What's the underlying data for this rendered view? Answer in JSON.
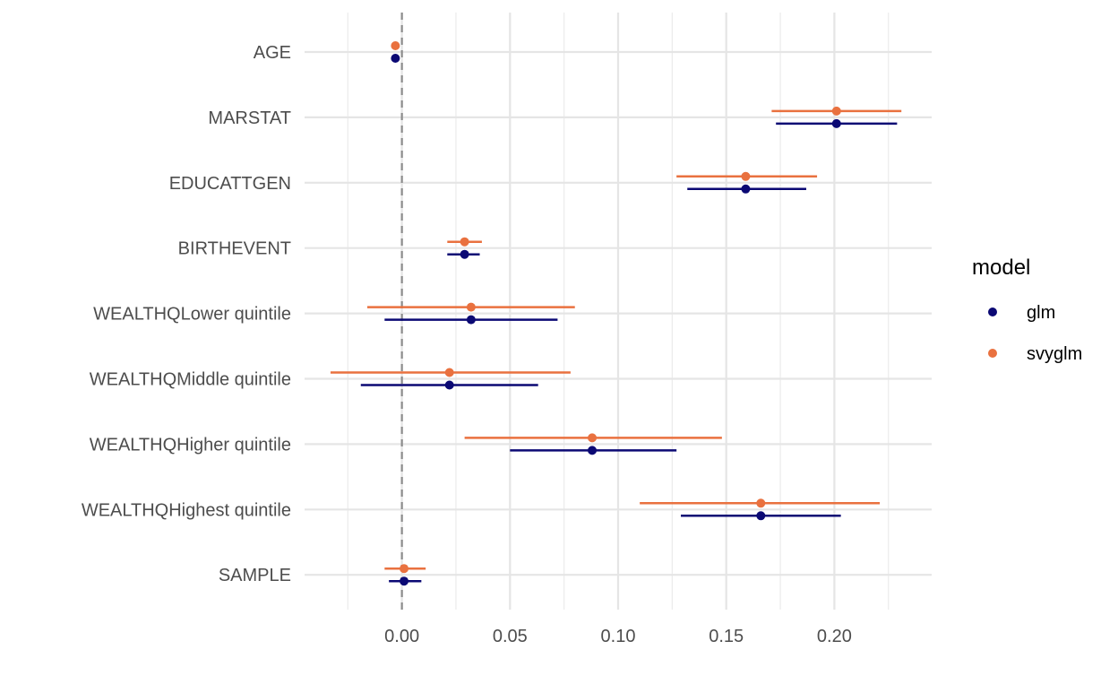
{
  "chart_data": {
    "type": "scatter",
    "subtype": "coefficient-plot",
    "title": "",
    "xlabel": "",
    "ylabel": "",
    "xlim": [
      -0.045,
      0.245
    ],
    "x_ticks": [
      0.0,
      0.05,
      0.1,
      0.15,
      0.2
    ],
    "x_tick_labels": [
      "0.00",
      "0.05",
      "0.10",
      "0.15",
      "0.20"
    ],
    "reference_line": 0,
    "grid": true,
    "legend_position": "right",
    "categories": [
      "AGE",
      "MARSTAT",
      "EDUCATTGEN",
      "BIRTHEVENT",
      "WEALTHQLower quintile",
      "WEALTHQMiddle quintile",
      "WEALTHQHigher quintile",
      "WEALTHQHighest quintile",
      "SAMPLE"
    ],
    "legend_title": "model",
    "series": [
      {
        "name": "glm",
        "color": "#0b0974",
        "estimate": [
          -0.003,
          0.201,
          0.159,
          0.029,
          0.032,
          0.022,
          0.088,
          0.166,
          0.001
        ],
        "lower": [
          -0.003,
          0.173,
          0.132,
          0.021,
          -0.008,
          -0.019,
          0.05,
          0.129,
          -0.006
        ],
        "upper": [
          -0.003,
          0.229,
          0.187,
          0.036,
          0.072,
          0.063,
          0.127,
          0.203,
          0.009
        ]
      },
      {
        "name": "svyglm",
        "color": "#e9713f",
        "estimate": [
          -0.003,
          0.201,
          0.159,
          0.029,
          0.032,
          0.022,
          0.088,
          0.166,
          0.001
        ],
        "lower": [
          -0.003,
          0.171,
          0.127,
          0.021,
          -0.016,
          -0.033,
          0.029,
          0.11,
          -0.008
        ],
        "upper": [
          -0.003,
          0.231,
          0.192,
          0.037,
          0.08,
          0.078,
          0.148,
          0.221,
          0.011
        ]
      }
    ]
  }
}
